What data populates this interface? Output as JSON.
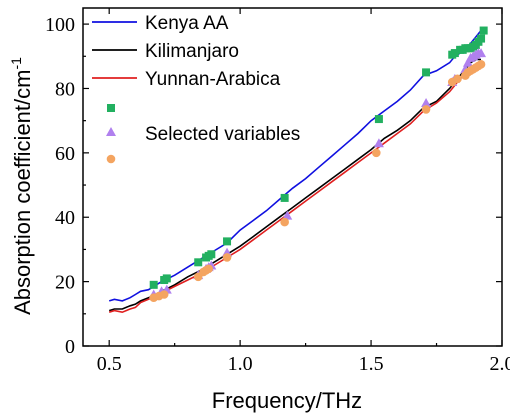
{
  "chart_data": {
    "type": "line",
    "xlabel": "Frequency/THz",
    "ylabel": "Absorption coefficient/cm",
    "ylabel_sup": "-1",
    "xlim": [
      0.4,
      2.0
    ],
    "ylim": [
      0,
      105
    ],
    "xticks": [
      0.5,
      1.0,
      1.5,
      2.0
    ],
    "xtick_labels": [
      "0.5",
      "1.0",
      "1.5",
      "2.0"
    ],
    "yticks": [
      0,
      20,
      40,
      60,
      80,
      100
    ],
    "ytick_labels": [
      "0",
      "20",
      "40",
      "60",
      "80",
      "100"
    ],
    "grid": false,
    "legend_position": "top-left",
    "legend_markers_label": "Selected variables",
    "series": [
      {
        "name": "Kenya AA",
        "color": "#1010e0",
        "x": [
          0.5,
          0.52,
          0.55,
          0.58,
          0.6,
          0.62,
          0.65,
          0.68,
          0.7,
          0.75,
          0.8,
          0.85,
          0.9,
          0.95,
          1.0,
          1.05,
          1.1,
          1.15,
          1.2,
          1.25,
          1.3,
          1.35,
          1.4,
          1.45,
          1.5,
          1.55,
          1.6,
          1.65,
          1.7,
          1.75,
          1.8,
          1.82,
          1.84,
          1.86,
          1.88,
          1.9,
          1.92
        ],
        "y": [
          14,
          14.5,
          14,
          15,
          16,
          17,
          17.5,
          19,
          20,
          22,
          24.5,
          27,
          29.5,
          32,
          36,
          39,
          42,
          45.5,
          49,
          52,
          55.5,
          59,
          62.5,
          66,
          70,
          73,
          76,
          79.5,
          84,
          85.5,
          88,
          90,
          91,
          92,
          94,
          96,
          98
        ]
      },
      {
        "name": "Kilimanjaro",
        "color": "#000000",
        "x": [
          0.5,
          0.52,
          0.55,
          0.58,
          0.6,
          0.62,
          0.65,
          0.68,
          0.7,
          0.75,
          0.8,
          0.85,
          0.9,
          0.95,
          1.0,
          1.05,
          1.1,
          1.15,
          1.2,
          1.25,
          1.3,
          1.35,
          1.4,
          1.45,
          1.5,
          1.55,
          1.6,
          1.65,
          1.7,
          1.75,
          1.8,
          1.82,
          1.84,
          1.86,
          1.88,
          1.9,
          1.92
        ],
        "y": [
          11,
          11.5,
          11.5,
          12.5,
          13,
          14,
          15,
          16,
          17,
          19,
          21.5,
          23.5,
          26,
          28.5,
          31,
          34,
          37,
          40,
          43,
          46,
          49,
          52,
          55,
          58,
          61,
          64.5,
          67,
          70,
          74,
          76,
          80,
          82,
          84,
          86,
          88,
          89,
          89
        ]
      },
      {
        "name": "Yunnan-Arabica",
        "color": "#e02020",
        "x": [
          0.5,
          0.52,
          0.55,
          0.58,
          0.6,
          0.62,
          0.65,
          0.68,
          0.7,
          0.75,
          0.8,
          0.85,
          0.9,
          0.95,
          1.0,
          1.05,
          1.1,
          1.15,
          1.2,
          1.25,
          1.3,
          1.35,
          1.4,
          1.45,
          1.5,
          1.55,
          1.6,
          1.65,
          1.7,
          1.75,
          1.8,
          1.82,
          1.84,
          1.86,
          1.88,
          1.9,
          1.92
        ],
        "y": [
          10.5,
          11,
          10.5,
          11.5,
          12,
          13.5,
          14.5,
          15.5,
          16.5,
          18.5,
          20.5,
          22.5,
          25,
          27.5,
          30,
          33,
          36,
          39,
          42,
          45,
          48,
          51,
          54,
          57,
          60,
          63,
          66,
          69,
          73,
          75.5,
          79,
          81,
          83,
          84.5,
          86,
          86,
          86.5
        ]
      }
    ],
    "markers": [
      {
        "shape": "square",
        "color": "#22b060",
        "x": [
          0.67,
          0.71,
          0.72,
          0.84,
          0.87,
          0.88,
          0.89,
          0.95,
          1.17,
          1.53,
          1.71,
          1.81,
          1.82,
          1.84,
          1.85,
          1.86,
          1.87,
          1.88,
          1.89,
          1.9,
          1.91,
          1.92,
          1.93
        ],
        "y": [
          19,
          20.5,
          21,
          26,
          27.5,
          28,
          28.5,
          32.5,
          46,
          70.5,
          85,
          90.5,
          91,
          92,
          92,
          92.5,
          92.5,
          92.5,
          93,
          93.5,
          94.5,
          95.5,
          98
        ]
      },
      {
        "shape": "triangle",
        "color": "#b080ee",
        "x": [
          0.67,
          0.7,
          0.72,
          0.84,
          0.87,
          0.88,
          0.89,
          0.95,
          1.18,
          1.53,
          1.71,
          1.81,
          1.82,
          1.86,
          1.87,
          1.88,
          1.89,
          1.9,
          1.91,
          1.92
        ],
        "y": [
          16,
          17,
          17.5,
          22,
          24,
          24.5,
          25,
          29,
          40.5,
          63,
          75.5,
          82,
          83,
          86,
          88,
          89.5,
          90,
          90.5,
          91,
          91
        ]
      },
      {
        "shape": "circle",
        "color": "#f4a460",
        "x": [
          0.67,
          0.69,
          0.71,
          0.84,
          0.86,
          0.87,
          0.88,
          0.95,
          1.17,
          1.52,
          1.71,
          1.81,
          1.83,
          1.86,
          1.87,
          1.88,
          1.89,
          1.9,
          1.91,
          1.92
        ],
        "y": [
          15,
          15.5,
          16,
          21.5,
          23,
          23.5,
          24,
          27.5,
          38.5,
          60,
          73.5,
          82,
          83,
          84,
          85,
          85.5,
          86,
          86.5,
          87,
          87.5
        ]
      }
    ]
  }
}
